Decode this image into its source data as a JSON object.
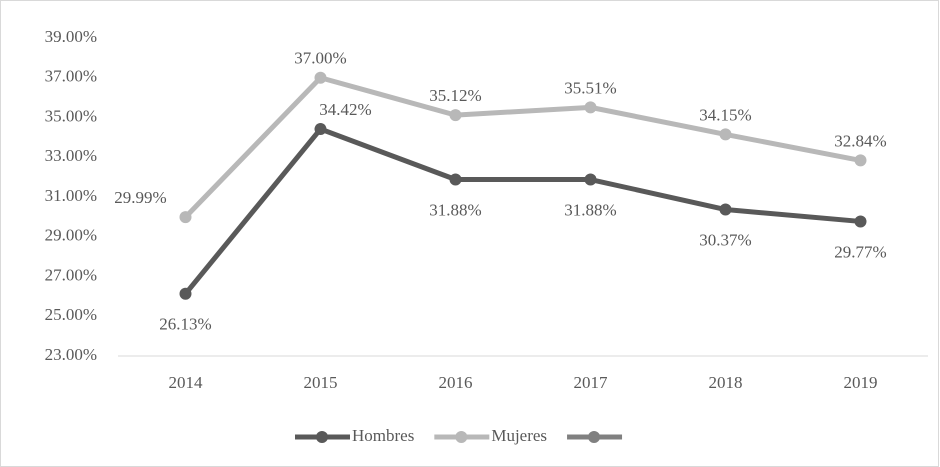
{
  "chart_data": {
    "type": "line",
    "categories": [
      "2014",
      "2015",
      "2016",
      "2017",
      "2018",
      "2019"
    ],
    "series": [
      {
        "name": "Hombres",
        "color": "#595959",
        "values": [
          26.13,
          34.42,
          31.88,
          31.88,
          30.37,
          29.77
        ],
        "value_labels": [
          "26.13%",
          "34.42%",
          "31.88%",
          "31.88%",
          "30.37%",
          "29.77%"
        ]
      },
      {
        "name": "Mujeres",
        "color": "#b8b8b8",
        "values": [
          29.99,
          37.0,
          35.12,
          35.51,
          34.15,
          32.84
        ],
        "value_labels": [
          "29.99%",
          "37.00%",
          "35.12%",
          "35.51%",
          "34.15%",
          "32.84%"
        ]
      },
      {
        "color": "#808080",
        "values": [
          null,
          null,
          null,
          null,
          null,
          null
        ]
      }
    ],
    "ylim": [
      23,
      39
    ],
    "yticks": [
      {
        "value": 23,
        "label": "23.00%"
      },
      {
        "value": 25,
        "label": "25.00%"
      },
      {
        "value": 27,
        "label": "27.00%"
      },
      {
        "value": 29,
        "label": "29.00%"
      },
      {
        "value": 31,
        "label": "31.00%"
      },
      {
        "value": 33,
        "label": "33.00%"
      },
      {
        "value": 35,
        "label": "35.00%"
      },
      {
        "value": 37,
        "label": "37.00%"
      },
      {
        "value": 39,
        "label": "39.00%"
      }
    ],
    "legend": "bottom"
  }
}
